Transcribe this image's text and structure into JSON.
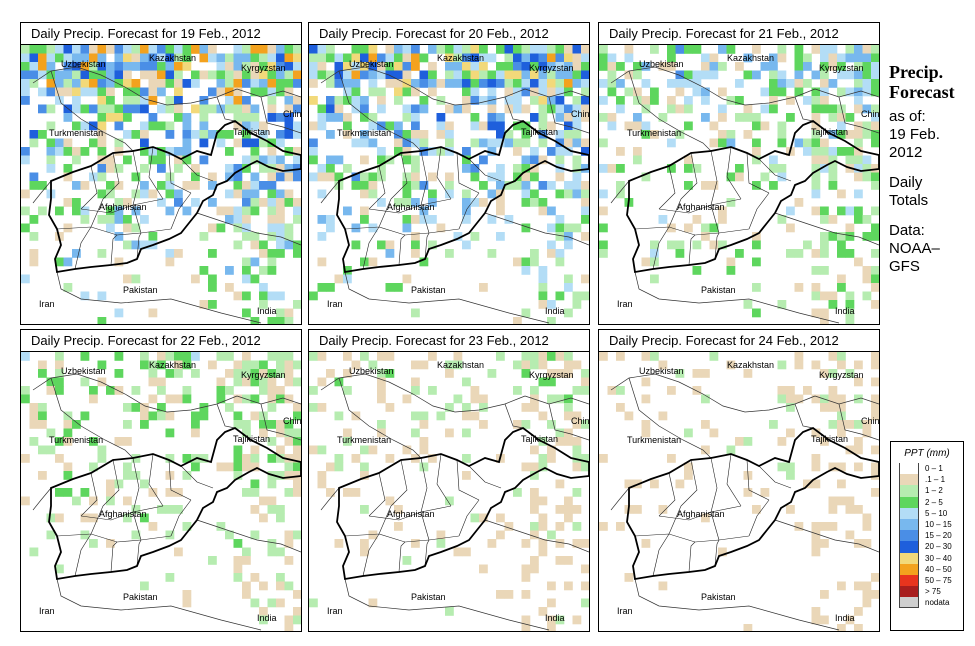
{
  "panels": [
    {
      "title": "Daily Precip. Forecast for  19 Feb., 2012",
      "intensity": 1.0
    },
    {
      "title": "Daily Precip. Forecast for  20 Feb., 2012",
      "intensity": 0.95
    },
    {
      "title": "Daily Precip. Forecast for  21 Feb., 2012",
      "intensity": 0.7
    },
    {
      "title": "Daily Precip. Forecast for  22 Feb., 2012",
      "intensity": 0.45
    },
    {
      "title": "Daily Precip. Forecast for  23 Feb., 2012",
      "intensity": 0.3
    },
    {
      "title": "Daily Precip. Forecast for  24 Feb., 2012",
      "intensity": 0.2
    }
  ],
  "countries": [
    "Uzbekistan",
    "Kazakhstan",
    "Kyrgyzstan",
    "China",
    "Tajikistan",
    "Turkmenistan",
    "Afghanistan",
    "Pakistan",
    "Iran",
    "India"
  ],
  "sidebar": {
    "heading1": "Precip.",
    "heading2": "Forecast",
    "asof": "as of:",
    "date1": "19 Feb.",
    "date2": "2012",
    "daily": "Daily",
    "totals": "Totals",
    "data": "Data:",
    "source1": "NOAA–",
    "source2": "GFS"
  },
  "legend": {
    "title": "PPT (mm)",
    "items": [
      {
        "label": "0 – 1",
        "color": "#ffffff"
      },
      {
        "label": ".1 – 1",
        "color": "#ead7b8"
      },
      {
        "label": "1 – 2",
        "color": "#b6ecb0"
      },
      {
        "label": "2 – 5",
        "color": "#5ed65e"
      },
      {
        "label": "5 – 10",
        "color": "#b3ddf6"
      },
      {
        "label": "10 – 15",
        "color": "#78b8ee"
      },
      {
        "label": "15 – 20",
        "color": "#4a8ee6"
      },
      {
        "label": "20 – 30",
        "color": "#1e5fdc"
      },
      {
        "label": "30 – 40",
        "color": "#f2d97a"
      },
      {
        "label": "40 – 50",
        "color": "#f3a21e"
      },
      {
        "label": "50 – 75",
        "color": "#e8341e"
      },
      {
        "label": "> 75",
        "color": "#a81e1e"
      },
      {
        "label": "nodata",
        "color": "#cfcfcf"
      }
    ]
  }
}
